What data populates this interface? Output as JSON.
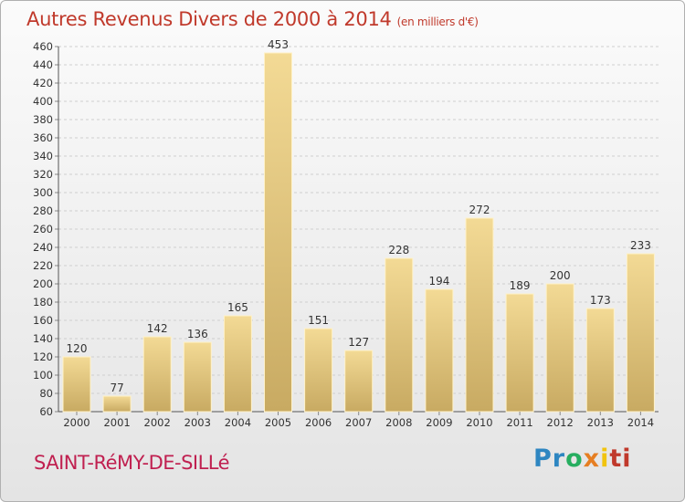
{
  "header": {
    "title": "Autres Revenus Divers de 2000 à 2014",
    "subtitle": "(en milliers d'€)"
  },
  "footer": {
    "commune": "SAINT-RéMY-DE-SILLé",
    "logo": [
      "Pr",
      "o",
      "x",
      "i",
      "ti"
    ]
  },
  "colors": {
    "bar_light": "#f3da95",
    "bar_dark": "#c8aa62",
    "grid": "#cfcfcf",
    "title": "#c0392b",
    "commune": "#c02050"
  },
  "chart_data": {
    "type": "bar",
    "title": "Autres Revenus Divers de 2000 à 2014",
    "subtitle": "(en milliers d'€)",
    "xlabel": "",
    "ylabel": "",
    "categories": [
      "2000",
      "2001",
      "2002",
      "2003",
      "2004",
      "2005",
      "2006",
      "2007",
      "2008",
      "2009",
      "2010",
      "2011",
      "2012",
      "2013",
      "2014"
    ],
    "values": [
      120,
      77,
      142,
      136,
      165,
      453,
      151,
      127,
      228,
      194,
      272,
      189,
      200,
      173,
      233
    ],
    "ylim": [
      60,
      460
    ],
    "yticks": [
      60,
      80,
      100,
      120,
      140,
      160,
      180,
      200,
      220,
      240,
      260,
      280,
      300,
      320,
      340,
      360,
      380,
      400,
      420,
      440,
      460
    ],
    "grid": true
  }
}
